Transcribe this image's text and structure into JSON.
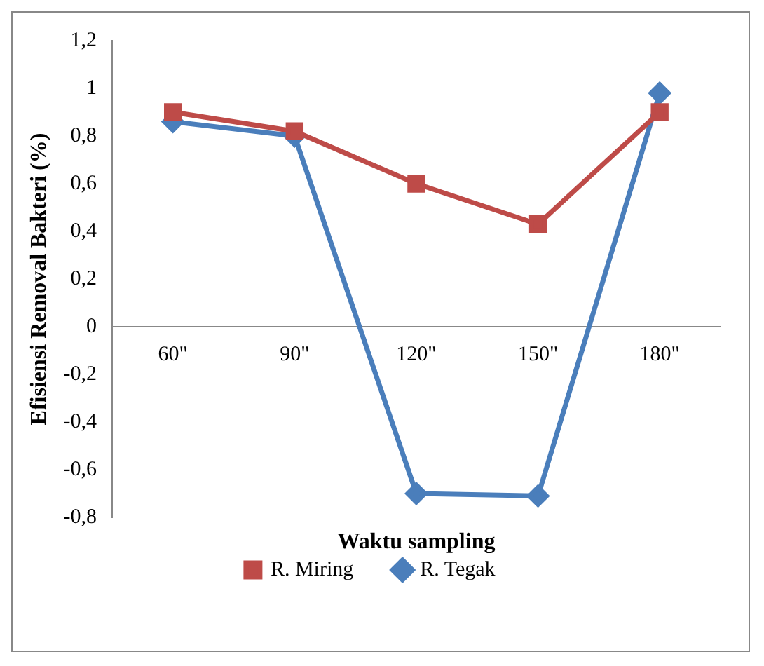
{
  "chart_data": {
    "type": "line",
    "xlabel": "Waktu sampling",
    "ylabel": "Efisiensi Removal Bakteri (%)",
    "categories": [
      "60\"",
      "90\"",
      "120\"",
      "150\"",
      "180\""
    ],
    "series": [
      {
        "name": "R. Tegak",
        "color": "#4a7ebb",
        "marker": "diamond",
        "values": [
          0.86,
          0.8,
          -0.7,
          -0.71,
          0.98
        ]
      },
      {
        "name": "R. Miring",
        "color": "#be4b48",
        "marker": "square",
        "values": [
          0.9,
          0.82,
          0.6,
          0.43,
          0.9
        ]
      }
    ],
    "ylim": [
      -0.8,
      1.2
    ],
    "yticks": [
      {
        "value": -0.8,
        "label": "-0,8"
      },
      {
        "value": -0.6,
        "label": "-0,6"
      },
      {
        "value": -0.4,
        "label": "-0,4"
      },
      {
        "value": -0.2,
        "label": "-0,2"
      },
      0,
      {
        "value": 0.2,
        "label": "0,2"
      },
      {
        "value": 0.4,
        "label": "0,4"
      },
      {
        "value": 0.6,
        "label": "0,6"
      },
      {
        "value": 0.8,
        "label": "0,8"
      },
      1,
      {
        "value": 1.2,
        "label": "1,2"
      }
    ],
    "grid": false,
    "legend": "bottom",
    "line_style": "solid"
  }
}
